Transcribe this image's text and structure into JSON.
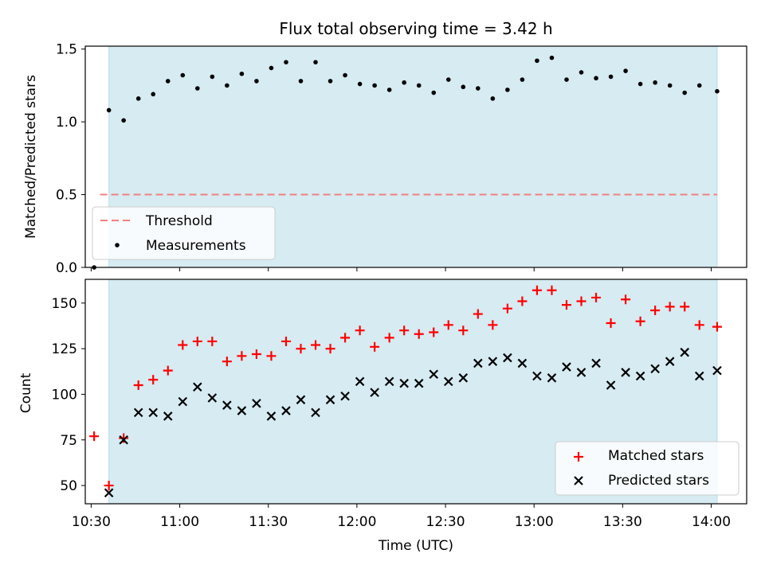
{
  "chart_data": [
    {
      "type": "scatter",
      "title": "Flux total observing time = 3.42 h",
      "ylabel": "Matched/Predicted stars",
      "xlabel": "",
      "ylim": [
        0,
        1.52
      ],
      "yticks": [
        "0.0",
        "0.5",
        "1.0",
        "1.5"
      ],
      "ytick_values": [
        0.0,
        0.5,
        1.0,
        1.5
      ],
      "shaded_span": [
        "10:36",
        "14:02"
      ],
      "shade_color": "#add8e6",
      "threshold": {
        "name": "Threshold",
        "value": 0.5,
        "x_range": [
          "10:33",
          "14:02"
        ],
        "color": "#f08080",
        "style": "dashed"
      },
      "legend": {
        "position": "lower-left",
        "entries": [
          "Threshold",
          "Measurements"
        ]
      },
      "series": [
        {
          "name": "Measurements",
          "marker": "dot",
          "color": "#000000",
          "x": [
            "10:31",
            "10:36",
            "10:41",
            "10:46",
            "10:51",
            "10:56",
            "11:01",
            "11:06",
            "11:11",
            "11:16",
            "11:21",
            "11:26",
            "11:31",
            "11:36",
            "11:41",
            "11:46",
            "11:51",
            "11:56",
            "12:01",
            "12:06",
            "12:11",
            "12:16",
            "12:21",
            "12:26",
            "12:31",
            "12:36",
            "12:41",
            "12:46",
            "12:51",
            "12:56",
            "13:01",
            "13:06",
            "13:11",
            "13:16",
            "13:21",
            "13:26",
            "13:31",
            "13:36",
            "13:41",
            "13:46",
            "13:51",
            "13:56",
            "14:02"
          ],
          "values": [
            0.0,
            1.08,
            1.01,
            1.16,
            1.19,
            1.28,
            1.32,
            1.23,
            1.31,
            1.25,
            1.33,
            1.28,
            1.37,
            1.41,
            1.28,
            1.41,
            1.28,
            1.32,
            1.26,
            1.25,
            1.22,
            1.27,
            1.25,
            1.2,
            1.29,
            1.24,
            1.23,
            1.16,
            1.22,
            1.29,
            1.42,
            1.44,
            1.29,
            1.34,
            1.3,
            1.31,
            1.35,
            1.26,
            1.27,
            1.25,
            1.2,
            1.25,
            1.21
          ]
        }
      ]
    },
    {
      "type": "scatter",
      "title": "",
      "xlabel": "Time (UTC)",
      "ylabel": "Count",
      "ylim": [
        40,
        163
      ],
      "yticks": [
        "50",
        "75",
        "100",
        "125",
        "150"
      ],
      "ytick_values": [
        50,
        75,
        100,
        125,
        150
      ],
      "xlim": [
        "10:28",
        "14:12"
      ],
      "xticks": [
        "10:30",
        "11:00",
        "11:30",
        "12:00",
        "12:30",
        "13:00",
        "13:30",
        "14:00"
      ],
      "shaded_span": [
        "10:36",
        "14:02"
      ],
      "shade_color": "#add8e6",
      "legend": {
        "position": "lower-right",
        "entries": [
          "Matched stars",
          "Predicted stars"
        ]
      },
      "series": [
        {
          "name": "Matched stars",
          "marker": "plus",
          "color": "#ff0000",
          "x": [
            "10:31",
            "10:36",
            "10:41",
            "10:46",
            "10:51",
            "10:56",
            "11:01",
            "11:06",
            "11:11",
            "11:16",
            "11:21",
            "11:26",
            "11:31",
            "11:36",
            "11:41",
            "11:46",
            "11:51",
            "11:56",
            "12:01",
            "12:06",
            "12:11",
            "12:16",
            "12:21",
            "12:26",
            "12:31",
            "12:36",
            "12:41",
            "12:46",
            "12:51",
            "12:56",
            "13:01",
            "13:06",
            "13:11",
            "13:16",
            "13:21",
            "13:26",
            "13:31",
            "13:36",
            "13:41",
            "13:46",
            "13:51",
            "13:56",
            "14:02"
          ],
          "values": [
            77,
            50,
            76,
            105,
            108,
            113,
            127,
            129,
            129,
            118,
            121,
            122,
            121,
            129,
            125,
            127,
            125,
            131,
            135,
            126,
            131,
            135,
            133,
            134,
            138,
            135,
            144,
            138,
            147,
            151,
            157,
            157,
            149,
            151,
            153,
            139,
            152,
            140,
            146,
            148,
            148,
            138,
            137
          ]
        },
        {
          "name": "Predicted stars",
          "marker": "x",
          "color": "#000000",
          "x": [
            "10:36",
            "10:41",
            "10:46",
            "10:51",
            "10:56",
            "11:01",
            "11:06",
            "11:11",
            "11:16",
            "11:21",
            "11:26",
            "11:31",
            "11:36",
            "11:41",
            "11:46",
            "11:51",
            "11:56",
            "12:01",
            "12:06",
            "12:11",
            "12:16",
            "12:21",
            "12:26",
            "12:31",
            "12:36",
            "12:41",
            "12:46",
            "12:51",
            "12:56",
            "13:01",
            "13:06",
            "13:11",
            "13:16",
            "13:21",
            "13:26",
            "13:31",
            "13:36",
            "13:41",
            "13:46",
            "13:51",
            "13:56",
            "14:02"
          ],
          "values": [
            46,
            75,
            90,
            90,
            88,
            96,
            104,
            98,
            94,
            91,
            95,
            88,
            91,
            97,
            90,
            97,
            99,
            107,
            101,
            107,
            106,
            106,
            111,
            107,
            109,
            117,
            118,
            120,
            117,
            110,
            109,
            115,
            112,
            117,
            105,
            112,
            110,
            114,
            118,
            123,
            110,
            113
          ]
        }
      ]
    }
  ]
}
